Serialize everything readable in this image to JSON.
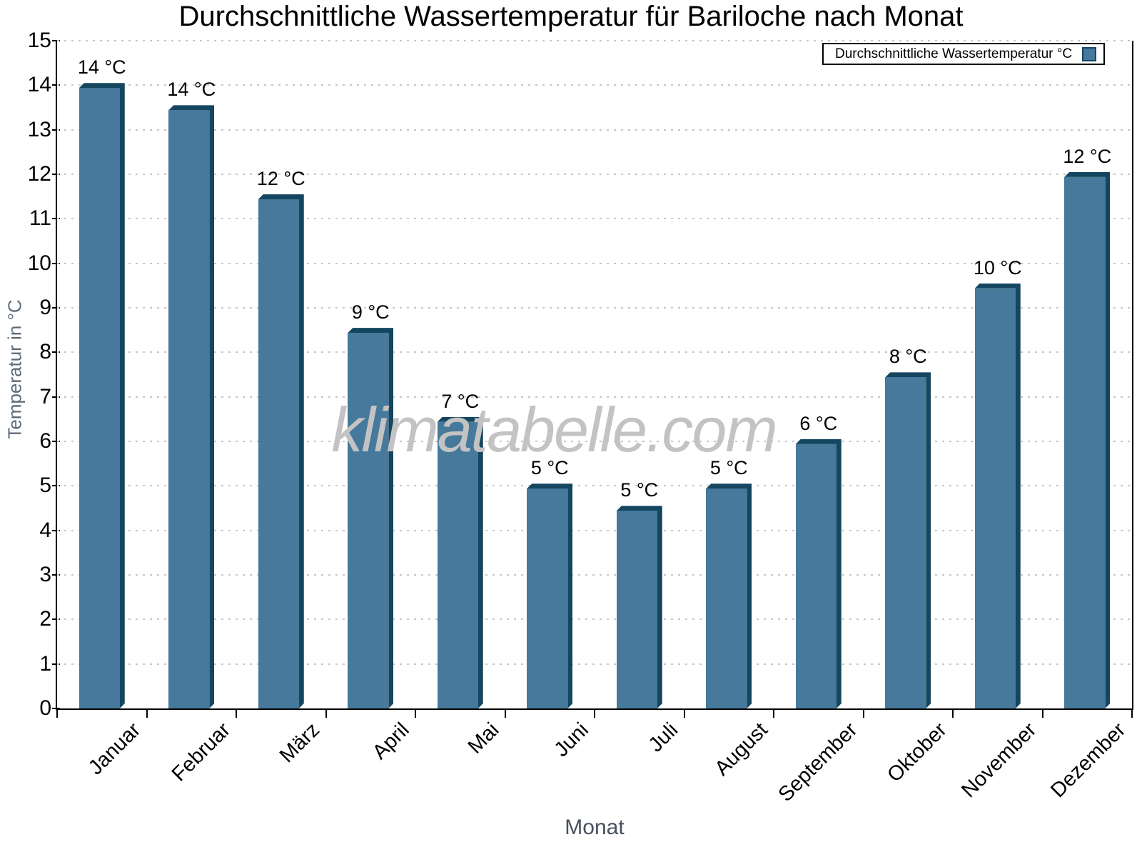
{
  "title": "Durchschnittliche Wassertemperatur für Bariloche nach Monat",
  "legend": {
    "label": "Durchschnittliche Wassertemperatur °C"
  },
  "watermark": "klimatabelle.com",
  "colors": {
    "bar_fill": "#46799b",
    "bar_edge": "#15465f",
    "grid": "#c7c7c7",
    "axis_line": "#000000",
    "x_title_text": "#47505c",
    "y_title_text": "#5c6a79",
    "watermark_text": "#c3c3c3"
  },
  "chart_data": {
    "type": "bar",
    "title": "Durchschnittliche Wassertemperatur für Bariloche nach Monat",
    "xlabel": "Monat",
    "ylabel": "Temperatur in °C",
    "ylim": [
      0,
      15
    ],
    "y_tick_step": 1,
    "y_tick_labels": [
      "0",
      "1",
      "2",
      "3",
      "4",
      "5",
      "6",
      "7",
      "8",
      "9",
      "10",
      "11",
      "12",
      "13",
      "14",
      "15"
    ],
    "categories": [
      "Januar",
      "Februar",
      "März",
      "April",
      "Mai",
      "Juni",
      "Juli",
      "August",
      "September",
      "Oktober",
      "November",
      "Dezember"
    ],
    "values": [
      14.05,
      13.55,
      11.55,
      8.55,
      6.55,
      5.05,
      4.55,
      5.05,
      6.05,
      7.55,
      9.55,
      12.05
    ],
    "data_labels": [
      "14 °C",
      "14 °C",
      "12 °C",
      "9 °C",
      "7 °C",
      "5 °C",
      "5 °C",
      "5 °C",
      "6 °C",
      "8 °C",
      "10 °C",
      "12 °C"
    ],
    "series_name": "Durchschnittliche Wassertemperatur °C",
    "legend_position": "top-right",
    "grid": "horizontal-dotted",
    "bar_style": "3d-bevel"
  }
}
